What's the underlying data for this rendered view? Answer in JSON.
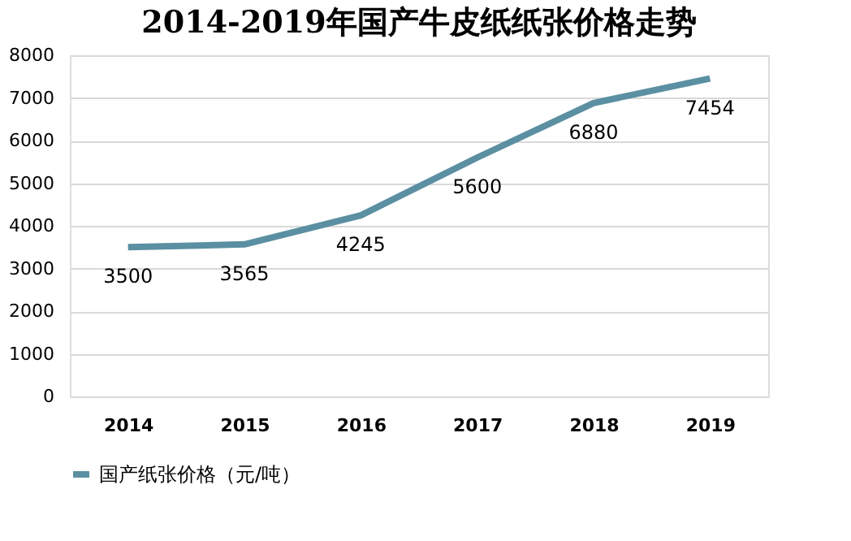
{
  "chart_data": {
    "type": "line",
    "title": "2014-2019年国产牛皮纸纸张价格走势",
    "categories": [
      "2014",
      "2015",
      "2016",
      "2017",
      "2018",
      "2019"
    ],
    "series": [
      {
        "name": "国产纸张价格（元/吨）",
        "color": "#5b8fa2",
        "values": [
          3500,
          3565,
          4245,
          5600,
          6880,
          7454
        ]
      }
    ],
    "ylim": [
      0,
      8000
    ],
    "yticks": [
      0,
      1000,
      2000,
      3000,
      4000,
      5000,
      6000,
      7000,
      8000
    ],
    "grid": "y",
    "legend": "bottom",
    "data_labels": true,
    "marker": "none",
    "line_style": "solid"
  }
}
